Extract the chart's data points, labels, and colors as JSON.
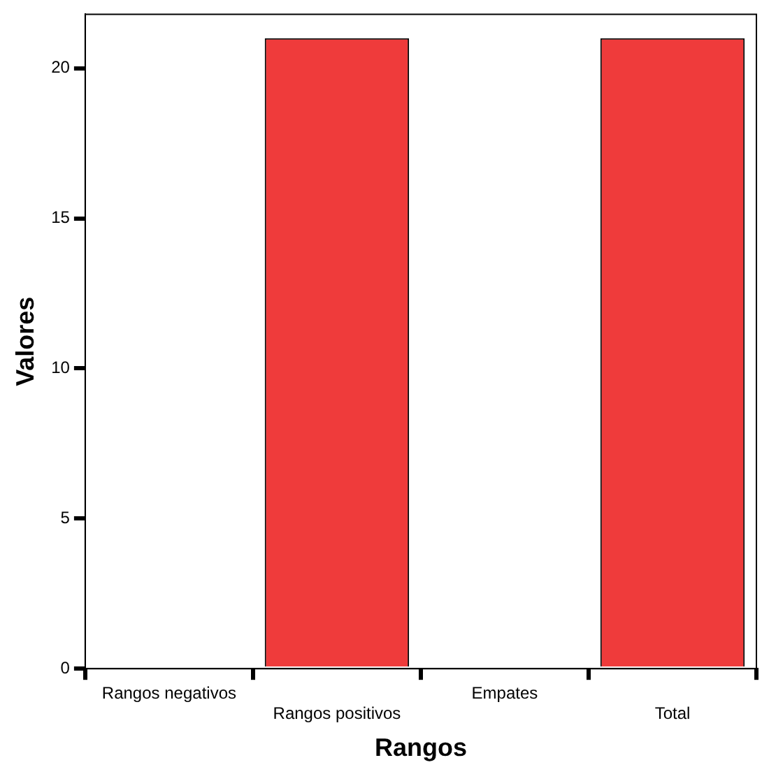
{
  "chart_data": {
    "type": "bar",
    "xlabel": "Rangos",
    "ylabel": "Valores",
    "categories": [
      "Rangos negativos",
      "Rangos positivos",
      "Empates",
      "Total"
    ],
    "values": [
      0,
      21,
      0,
      21
    ],
    "color": "#ef3b3b",
    "ylim": [
      0,
      21.8
    ],
    "yticks": [
      0,
      5,
      10,
      15,
      20
    ],
    "grid": false,
    "legend": false
  }
}
